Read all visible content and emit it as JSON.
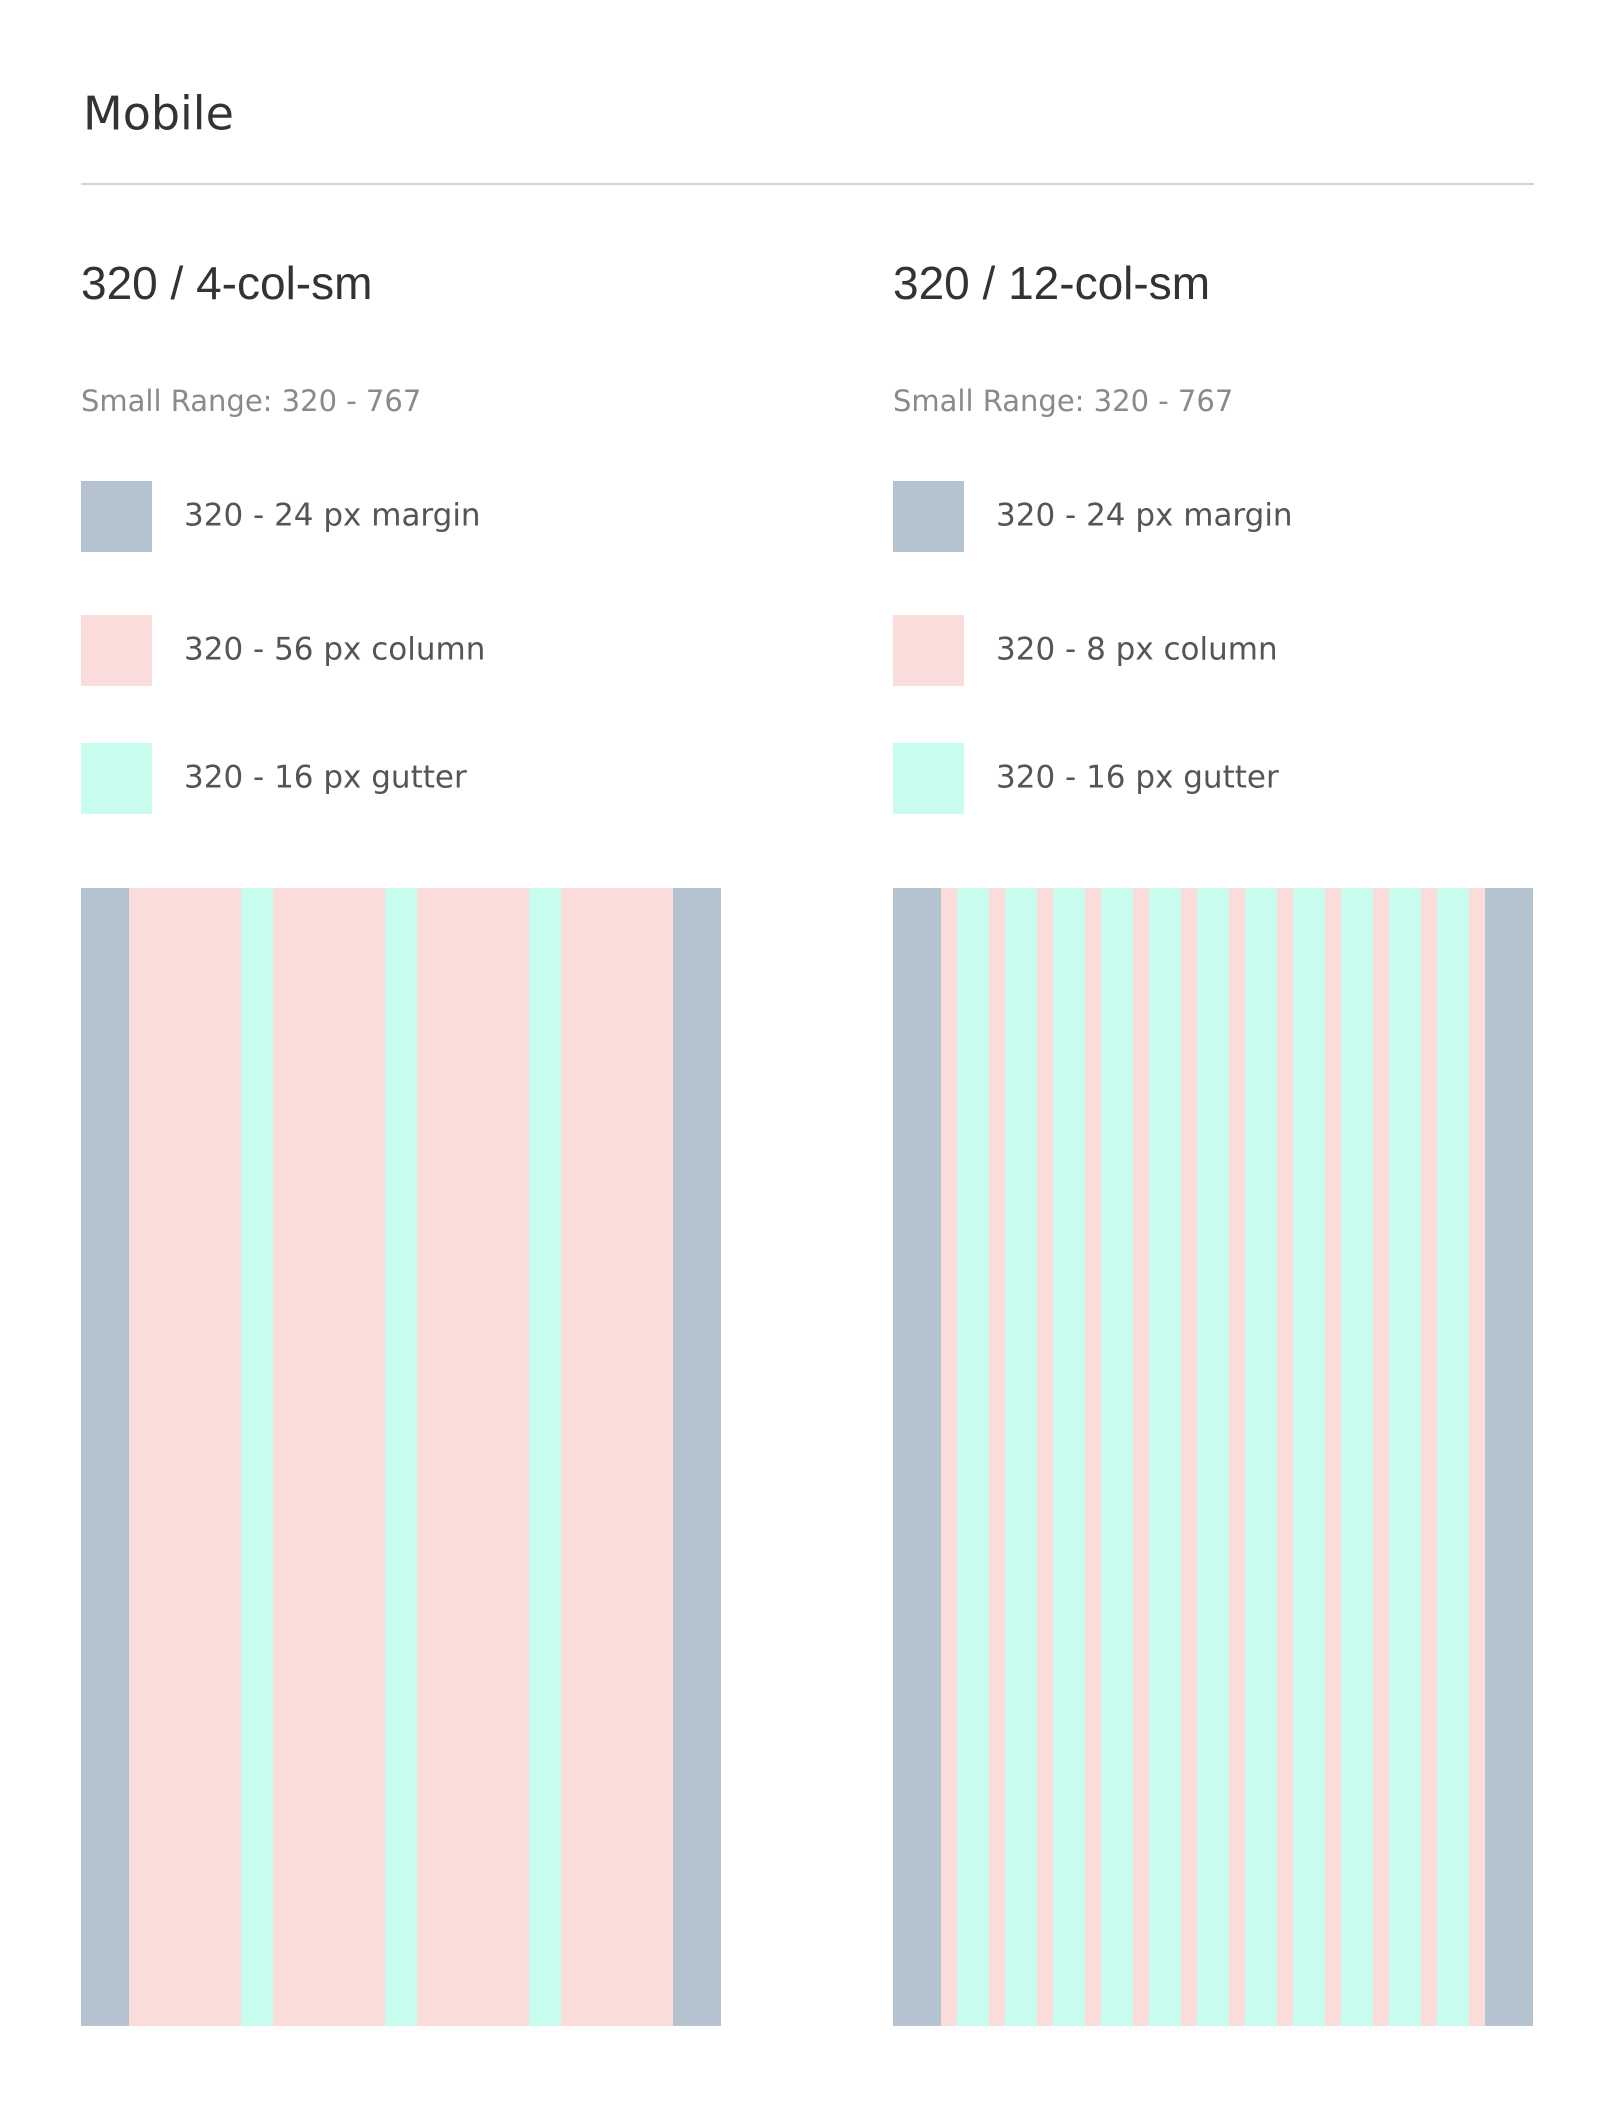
{
  "header": {
    "title": "Mobile"
  },
  "panels": [
    {
      "heading": "320 / 4-col-sm",
      "range": "Small Range: 320 - 767",
      "legend": [
        "320 - 24 px margin",
        "320 - 56 px column",
        "320 - 16 px gutter"
      ]
    },
    {
      "heading": "320 / 12-col-sm",
      "range": "Small Range: 320 - 767",
      "legend": [
        "320 - 24 px margin",
        "320 - 8 px column",
        "320 - 16 px gutter"
      ]
    }
  ]
}
